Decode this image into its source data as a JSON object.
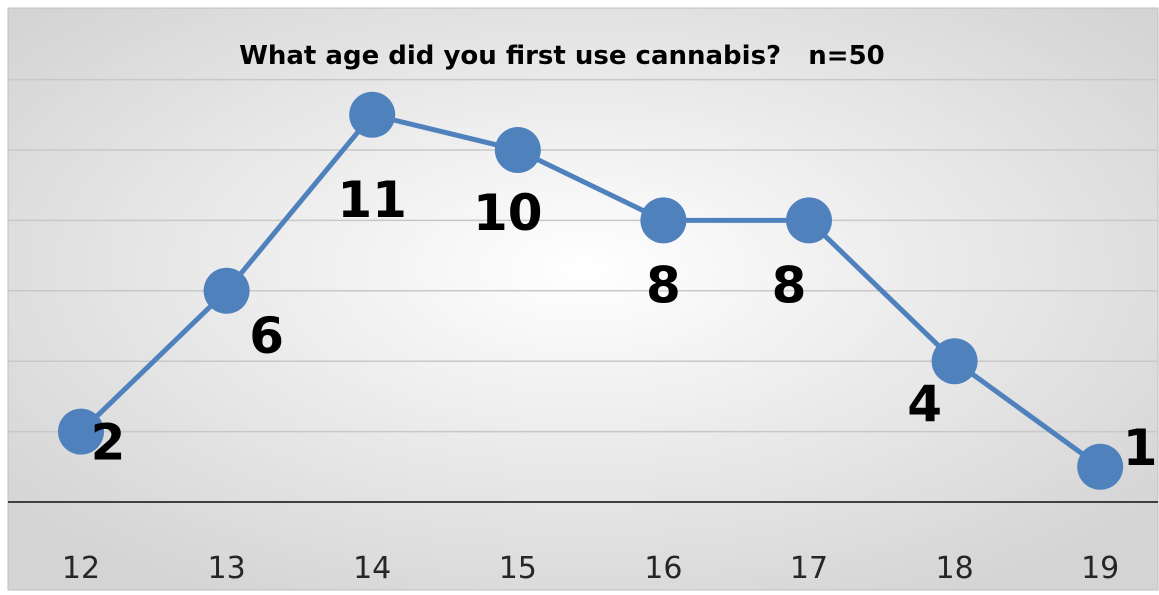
{
  "chart_data": {
    "type": "line",
    "title": "What age did you first use cannabis?   n=50",
    "xlabel": "",
    "ylabel": "",
    "categories": [
      "12",
      "13",
      "14",
      "15",
      "16",
      "17",
      "18",
      "19"
    ],
    "series": [
      {
        "values": [
          2,
          6,
          11,
          10,
          8,
          8,
          4,
          1
        ]
      }
    ],
    "ylim": [
      0,
      12
    ],
    "grid": true,
    "legend": "none",
    "colors": {
      "line": "#4f81bd",
      "marker": "#4f81bd",
      "gridline": "#c8c8c8",
      "axis": "#404040",
      "background_center": "#ffffff",
      "background_edge": "#d4d4d4"
    }
  }
}
